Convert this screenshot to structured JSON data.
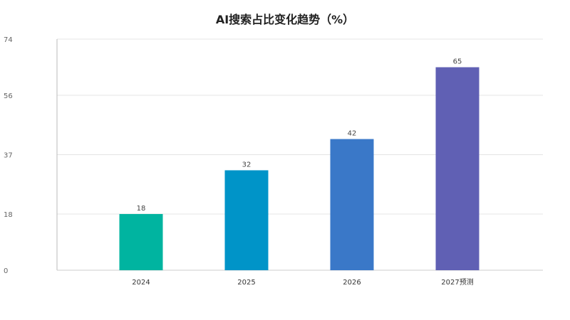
{
  "chart_data": {
    "type": "bar",
    "title": "AI搜索占比变化趋势（%）",
    "categories": [
      "2024",
      "2025",
      "2026",
      "2027预测"
    ],
    "values": [
      18,
      32,
      42,
      65
    ],
    "colors": [
      "#00b4a0",
      "#0094c8",
      "#3a78c8",
      "#6060b4"
    ],
    "ylim": [
      0,
      74
    ],
    "yticks": [
      0,
      18,
      37,
      56,
      74
    ],
    "grid": true,
    "xlabel": "",
    "ylabel": ""
  }
}
